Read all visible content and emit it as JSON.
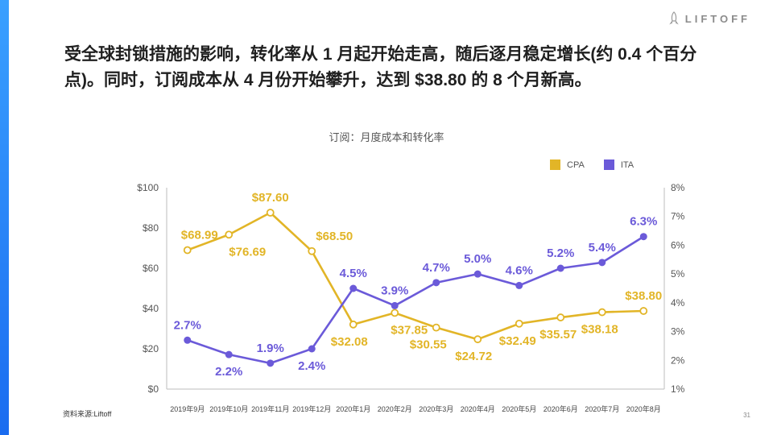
{
  "headline": "受全球封锁措施的影响，转化率从 1 月起开始走高，随后逐月稳定增长(约 0.4 个百分点)。同时，订阅成本从 4 月份开始攀升，达到 $38.80 的 8 个月新高。",
  "brand": {
    "logo_text": "LIFTOFF",
    "accent": "#1a6cf0"
  },
  "source": "资料来源:Liftoff",
  "page_number": "31",
  "chart_data": {
    "type": "line",
    "title": "订阅：月度成本和转化率",
    "categories": [
      "2019年9月",
      "2019年10月",
      "2019年11月",
      "2019年12月",
      "2020年1月",
      "2020年2月",
      "2020年3月",
      "2020年4月",
      "2020年5月",
      "2020年6月",
      "2020年7月",
      "2020年8月"
    ],
    "series": [
      {
        "name": "CPA",
        "axis": "left",
        "color": "#e2b527",
        "values": [
          68.99,
          76.69,
          87.6,
          68.5,
          32.08,
          37.85,
          30.55,
          24.72,
          32.49,
          35.57,
          38.18,
          38.8
        ],
        "labels": [
          "$68.99",
          "$76.69",
          "$87.60",
          "$68.50",
          "$32.08",
          "$37.85",
          "$30.55",
          "$24.72",
          "$32.49",
          "$35.57",
          "$38.18",
          "$38.80"
        ]
      },
      {
        "name": "ITA",
        "axis": "right",
        "color": "#6b5ad9",
        "values": [
          2.7,
          2.2,
          1.9,
          2.4,
          4.5,
          3.9,
          4.7,
          5.0,
          4.6,
          5.2,
          5.4,
          6.3
        ],
        "labels": [
          "2.7%",
          "2.2%",
          "1.9%",
          "2.4%",
          "4.5%",
          "3.9%",
          "4.7%",
          "5.0%",
          "4.6%",
          "5.2%",
          "5.4%",
          "6.3%"
        ]
      }
    ],
    "y_left": {
      "ylim": [
        0,
        100
      ],
      "ticks": [
        0,
        20,
        40,
        60,
        80,
        100
      ],
      "tick_labels": [
        "$0",
        "$20",
        "$40",
        "$60",
        "$80",
        "$100"
      ]
    },
    "y_right": {
      "ylim": [
        1,
        8
      ],
      "ticks": [
        1,
        2,
        3,
        4,
        5,
        6,
        7,
        8
      ],
      "tick_labels": [
        "1%",
        "2%",
        "3%",
        "4%",
        "5%",
        "6%",
        "7%",
        "8%"
      ]
    },
    "grid": false,
    "legend": "top-right"
  }
}
